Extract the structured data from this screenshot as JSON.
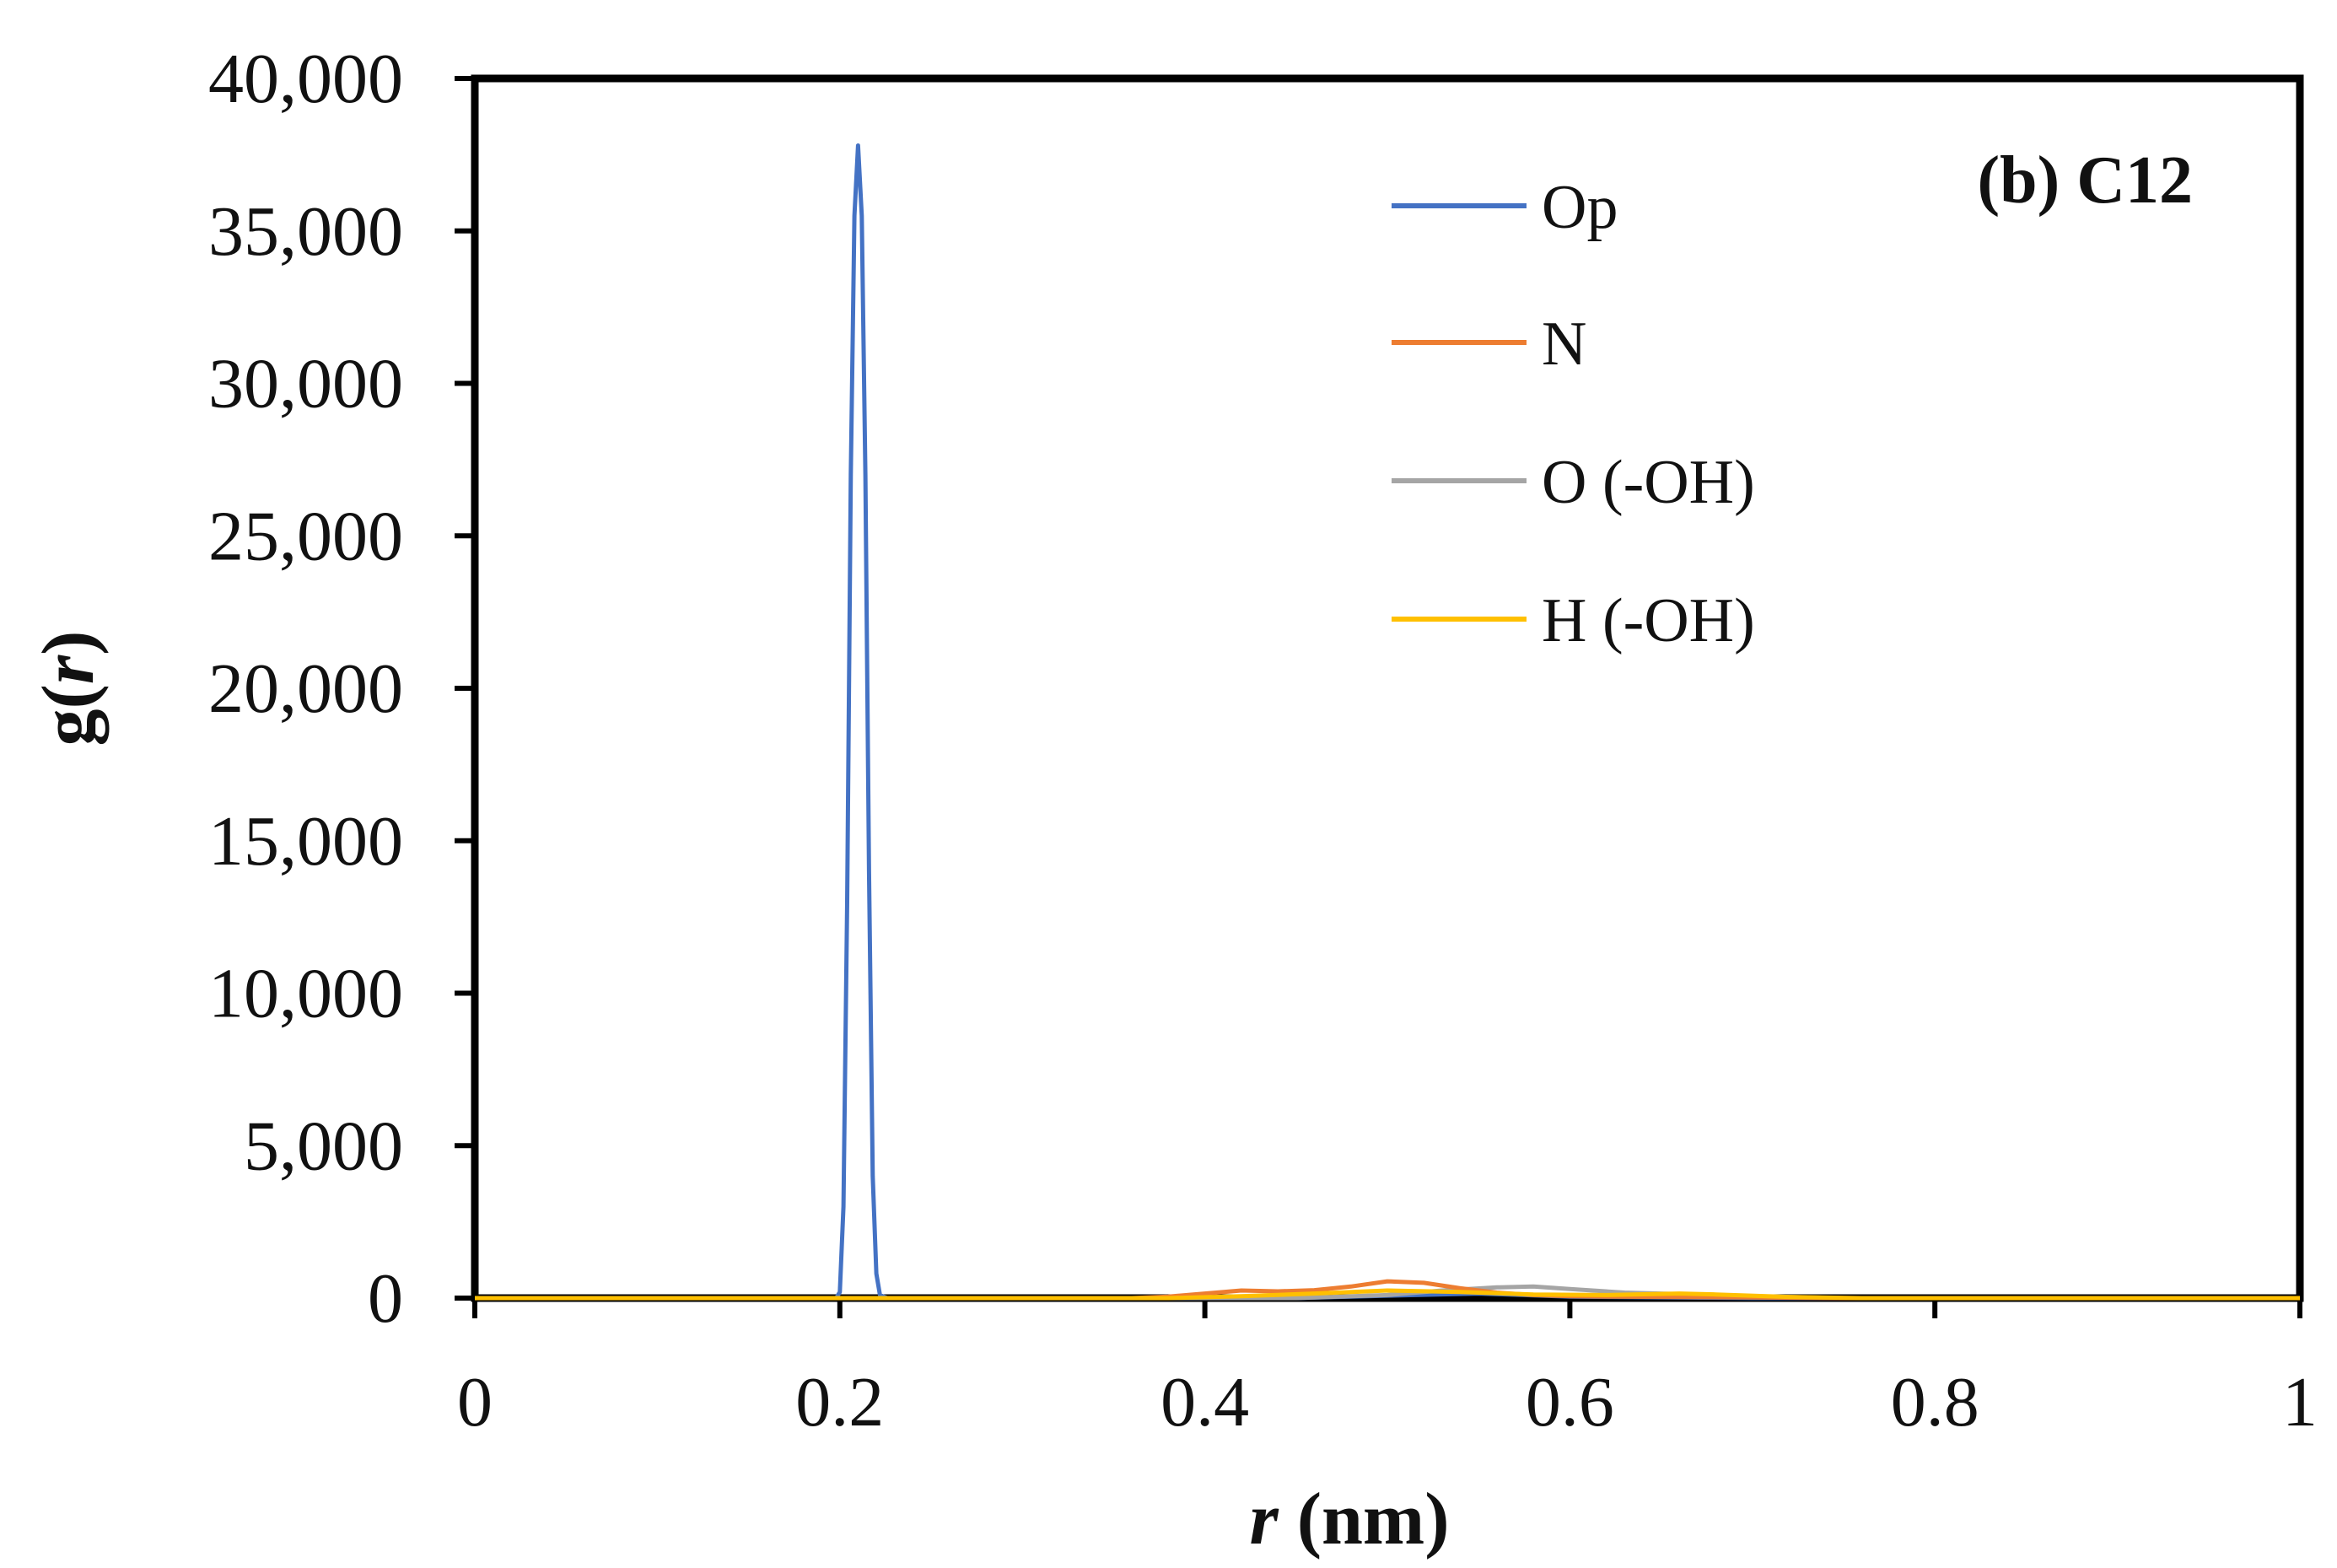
{
  "chart_data": {
    "type": "line",
    "title": "(b) C12",
    "xlabel_italic": "r",
    "xlabel_unit": "(nm)",
    "ylabel_prefix": "g(",
    "ylabel_italic": "r",
    "ylabel_suffix": ")",
    "xlim": [
      0,
      1
    ],
    "ylim": [
      0,
      40000
    ],
    "x_ticks": [
      0,
      0.2,
      0.4,
      0.6,
      0.8,
      1
    ],
    "x_tick_labels": [
      "0",
      "0.2",
      "0.4",
      "0.6",
      "0.8",
      "1"
    ],
    "y_ticks": [
      0,
      5000,
      10000,
      15000,
      20000,
      25000,
      30000,
      35000,
      40000
    ],
    "y_tick_labels": [
      "0",
      "5,000",
      "10,000",
      "15,000",
      "20,000",
      "25,000",
      "30,000",
      "35,000",
      "40,000"
    ],
    "grid": false,
    "legend_position": "top-center",
    "series": [
      {
        "name": "Op",
        "color": "#4472C4",
        "x": [
          0,
          0.19,
          0.198,
          0.2,
          0.202,
          0.204,
          0.206,
          0.208,
          0.21,
          0.212,
          0.214,
          0.216,
          0.218,
          0.22,
          0.222,
          0.226,
          0.3,
          0.45,
          0.5,
          0.55,
          0.6,
          0.7,
          1.0
        ],
        "values": [
          0,
          0,
          0,
          200,
          3000,
          13000,
          27000,
          35500,
          37800,
          35500,
          27000,
          14000,
          4000,
          800,
          100,
          0,
          0,
          0,
          80,
          150,
          50,
          0,
          0
        ]
      },
      {
        "name": "N",
        "color": "#ED7D31",
        "x": [
          0,
          0.36,
          0.38,
          0.4,
          0.42,
          0.44,
          0.46,
          0.48,
          0.5,
          0.52,
          0.54,
          0.56,
          0.58,
          0.6,
          0.62,
          0.65,
          0.7,
          0.75,
          1.0
        ],
        "values": [
          0,
          0,
          50,
          150,
          250,
          220,
          260,
          380,
          550,
          500,
          320,
          180,
          100,
          60,
          50,
          40,
          20,
          0,
          0
        ]
      },
      {
        "name": "O (-OH)",
        "color": "#A5A5A5",
        "x": [
          0,
          0.45,
          0.5,
          0.53,
          0.56,
          0.58,
          0.6,
          0.63,
          0.66,
          0.7,
          0.75,
          1.0
        ],
        "values": [
          0,
          0,
          100,
          250,
          350,
          380,
          300,
          180,
          130,
          60,
          0,
          0
        ]
      },
      {
        "name": "H (-OH)",
        "color": "#FFC000",
        "x": [
          0,
          0.38,
          0.42,
          0.46,
          0.5,
          0.54,
          0.58,
          0.62,
          0.66,
          0.68,
          0.72,
          0.76,
          1.0
        ],
        "values": [
          0,
          0,
          60,
          150,
          250,
          200,
          120,
          100,
          150,
          120,
          40,
          0,
          0
        ]
      }
    ]
  }
}
